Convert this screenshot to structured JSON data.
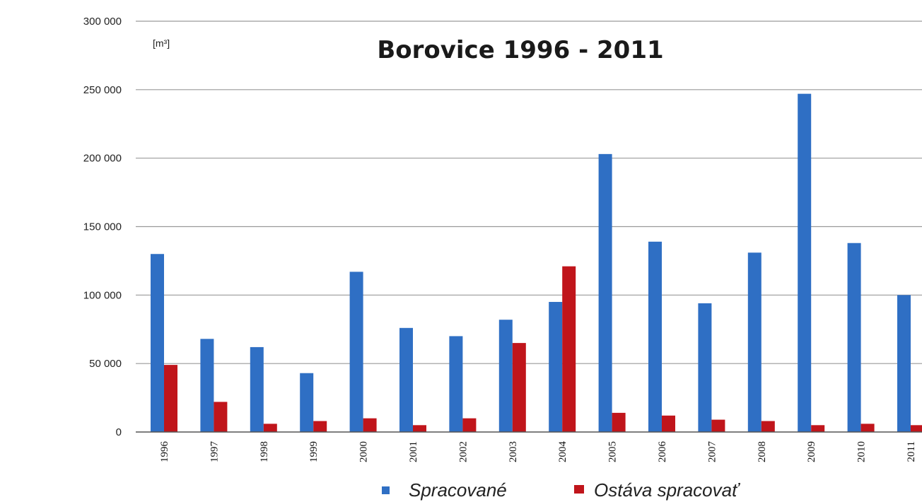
{
  "chart_data": {
    "type": "bar",
    "title": "Borovice 1996 - 2011",
    "unit_label": "[m³]",
    "xlabel": "",
    "ylabel": "",
    "categories": [
      "1996",
      "1997",
      "1998",
      "1999",
      "2000",
      "2001",
      "2002",
      "2003",
      "2004",
      "2005",
      "2006",
      "2007",
      "2008",
      "2009",
      "2010",
      "2011"
    ],
    "series": [
      {
        "name": "Spracované",
        "color": "#2f6fc4",
        "values": [
          130000,
          68000,
          62000,
          43000,
          117000,
          76000,
          70000,
          82000,
          95000,
          203000,
          139000,
          94000,
          131000,
          247000,
          138000,
          100000
        ]
      },
      {
        "name": "Ostáva spracovať",
        "color": "#c0151b",
        "values": [
          49000,
          22000,
          6000,
          8000,
          10000,
          5000,
          10000,
          65000,
          121000,
          14000,
          12000,
          9000,
          8000,
          5000,
          6000,
          5000
        ]
      }
    ],
    "ylim": [
      0,
      300000
    ],
    "yticks": [
      0,
      50000,
      100000,
      150000,
      200000,
      250000,
      300000
    ],
    "ytick_labels": [
      "0",
      "50 000",
      "100 000",
      "150 000",
      "200 000",
      "250 000",
      "300 000"
    ],
    "grid": true,
    "legend_position": "bottom"
  }
}
